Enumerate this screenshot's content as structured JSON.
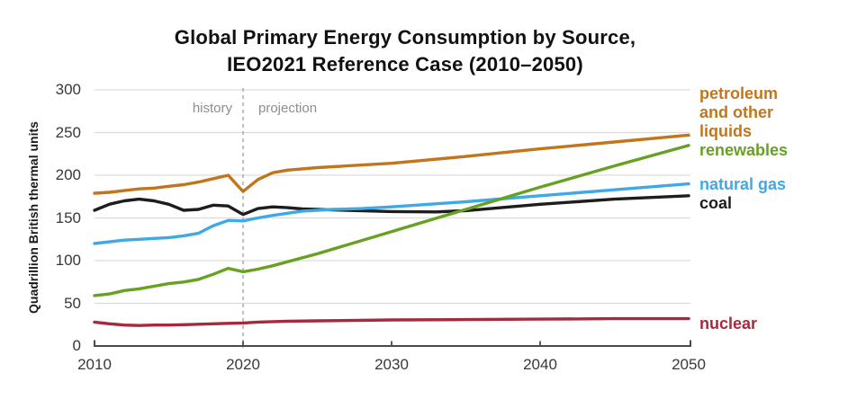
{
  "title": {
    "line1": "Global Primary Energy Consumption by Source,",
    "line2": "IEO2021 Reference Case (2010–2050)"
  },
  "chart_data": {
    "type": "line",
    "title": "Global Primary Energy Consumption by Source, IEO2021 Reference Case (2010–2050)",
    "xlabel": "",
    "ylabel": "Quadrillion British thermal units",
    "xlim": [
      2010,
      2050
    ],
    "ylim": [
      0,
      300
    ],
    "xticks": [
      "2010",
      "2020",
      "2030",
      "2040",
      "2050"
    ],
    "yticks": [
      "0",
      "50",
      "100",
      "150",
      "200",
      "250",
      "300"
    ],
    "grid": "horizontal gridlines at every 50 units",
    "legend_position": "right, colored text labels",
    "divider": {
      "x": 2020,
      "left_label": "history",
      "right_label": "projection",
      "style": "vertical dashed gray line"
    },
    "series": [
      {
        "name": "petroleum and other liquids",
        "color": "#c1761d",
        "x": [
          2010,
          2011,
          2012,
          2013,
          2014,
          2015,
          2016,
          2017,
          2018,
          2019,
          2020,
          2021,
          2022,
          2023,
          2025,
          2030,
          2035,
          2040,
          2045,
          2050
        ],
        "y": [
          179,
          180,
          182,
          184,
          185,
          187,
          189,
          192,
          196,
          200,
          181,
          195,
          203,
          206,
          209,
          214,
          222,
          231,
          239,
          247
        ]
      },
      {
        "name": "renewables",
        "color": "#67a122",
        "x": [
          2010,
          2011,
          2012,
          2013,
          2014,
          2015,
          2016,
          2017,
          2018,
          2019,
          2020,
          2021,
          2022,
          2025,
          2030,
          2035,
          2040,
          2045,
          2050
        ],
        "y": [
          59,
          61,
          65,
          67,
          70,
          73,
          75,
          78,
          84,
          91,
          87,
          90,
          94,
          108,
          134,
          160,
          186,
          211,
          235
        ]
      },
      {
        "name": "natural gas",
        "color": "#3fa9e6",
        "x": [
          2010,
          2011,
          2012,
          2013,
          2014,
          2015,
          2016,
          2017,
          2018,
          2019,
          2020,
          2021,
          2022,
          2023,
          2024,
          2025,
          2026,
          2028,
          2030,
          2035,
          2040,
          2045,
          2050
        ],
        "y": [
          120,
          122,
          124,
          125,
          126,
          127,
          129,
          132,
          141,
          147,
          146.5,
          150,
          153,
          155.5,
          158,
          159,
          160,
          161,
          163,
          169,
          176,
          183,
          190
        ]
      },
      {
        "name": "coal",
        "color": "#1d1d1d",
        "x": [
          2010,
          2011,
          2012,
          2013,
          2014,
          2015,
          2016,
          2017,
          2018,
          2019,
          2020,
          2021,
          2022,
          2023,
          2024,
          2025,
          2027,
          2030,
          2033,
          2035,
          2040,
          2045,
          2050
        ],
        "y": [
          159,
          166,
          170,
          172,
          170,
          166,
          159,
          160,
          165,
          164,
          154,
          161,
          163,
          162,
          160.5,
          160,
          159,
          157.5,
          157,
          158.5,
          166,
          172,
          176
        ]
      },
      {
        "name": "nuclear",
        "color": "#a42b3e",
        "x": [
          2010,
          2011,
          2012,
          2013,
          2014,
          2015,
          2016,
          2017,
          2018,
          2019,
          2020,
          2021,
          2023,
          2025,
          2030,
          2035,
          2040,
          2045,
          2050
        ],
        "y": [
          28,
          26,
          24.5,
          24,
          24.5,
          24.5,
          25,
          25.5,
          26,
          26.5,
          27,
          28,
          29,
          29.5,
          30.5,
          31,
          31.5,
          32,
          32
        ]
      }
    ],
    "style_colors": {
      "gridline": "#dcdcdc",
      "axis": "#4a4a4a",
      "divider_dash": "#ababab",
      "zone_label_gray": "#8e8e8e"
    }
  }
}
